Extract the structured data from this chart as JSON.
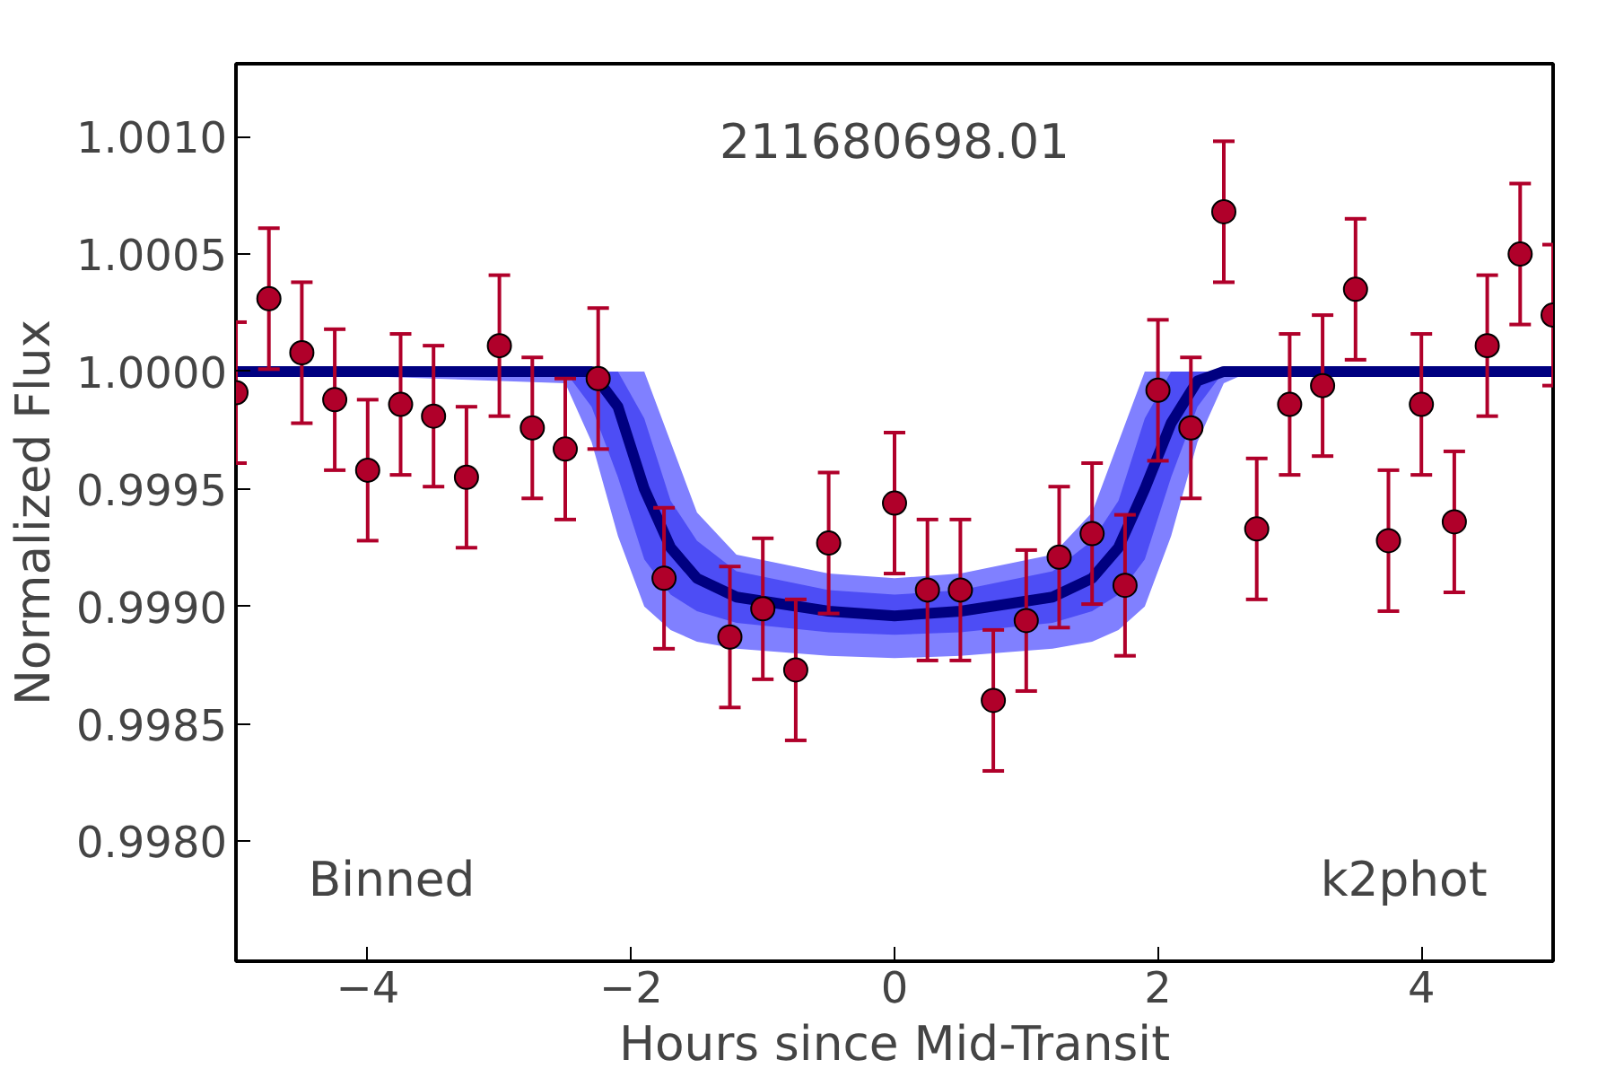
{
  "chart_data": {
    "type": "scatter",
    "xlabel": "Hours since Mid-Transit",
    "ylabel": "Normalized Flux",
    "annotations": [
      "211680698.01",
      "Binned",
      "k2phot"
    ],
    "xlim": [
      -5,
      5
    ],
    "ylim": [
      0.99749,
      1.00131
    ],
    "xticks": [
      -4,
      -2,
      0,
      2,
      4
    ],
    "yticks": [
      {
        "value": 0.998,
        "label": "0.9980"
      },
      {
        "value": 0.9985,
        "label": "0.9985"
      },
      {
        "value": 0.999,
        "label": "0.9990"
      },
      {
        "value": 0.9995,
        "label": "0.9995"
      },
      {
        "value": 1.0,
        "label": "1.0000"
      },
      {
        "value": 1.0005,
        "label": "1.0005"
      },
      {
        "value": 1.001,
        "label": "1.0010"
      }
    ],
    "grid": false,
    "series": [
      {
        "type": "line",
        "color": "#8080ff",
        "x": [
          -5,
          -2.5,
          -2.3,
          -2.1,
          -1.9,
          -1.7,
          -1.5,
          -1.2,
          -0.5,
          0,
          0.5,
          1.2,
          1.5,
          1.7,
          1.9,
          2.1,
          2.3,
          2.5,
          2.7,
          5
        ],
        "values": [
          null,
          null,
          null,
          null,
          null,
          null,
          null,
          null,
          null,
          null,
          null,
          null,
          null,
          null,
          null,
          null,
          null,
          null,
          null,
          null
        ],
        "upper": [
          1,
          1,
          1,
          1,
          1,
          0.9997,
          0.9994,
          0.99922,
          0.99914,
          0.99912,
          0.99914,
          0.99922,
          0.9994,
          0.9997,
          1,
          1,
          1,
          1,
          1,
          1
        ],
        "lower": [
          1,
          0.99995,
          0.9997,
          0.9993,
          0.999,
          0.9989,
          0.99885,
          0.99882,
          0.99879,
          0.99878,
          0.99879,
          0.99882,
          0.99885,
          0.9989,
          0.999,
          0.9993,
          0.9997,
          0.99995,
          1,
          1
        ]
      },
      {
        "type": "line",
        "color": "#4d4df5",
        "x": [
          -5,
          -2.5,
          -2.3,
          -2.1,
          -1.9,
          -1.7,
          -1.5,
          -1.2,
          -0.5,
          0,
          0.5,
          1.2,
          1.5,
          1.7,
          1.9,
          2.1,
          2.3,
          2.5,
          2.7,
          5
        ],
        "values": [
          null,
          null,
          null,
          null,
          null,
          null,
          null,
          null,
          null,
          null,
          null,
          null,
          null,
          null,
          null,
          null,
          null,
          null,
          null,
          null
        ],
        "upper": [
          1,
          1,
          1,
          1,
          0.9998,
          0.99945,
          0.99928,
          0.99915,
          0.99907,
          0.99905,
          0.99907,
          0.99915,
          0.99928,
          0.99945,
          0.9998,
          1,
          1,
          1,
          1,
          1
        ],
        "lower": [
          1,
          1,
          0.99985,
          0.99955,
          0.9992,
          0.99905,
          0.99898,
          0.99893,
          0.99889,
          0.99888,
          0.99889,
          0.99893,
          0.99898,
          0.99905,
          0.9992,
          0.99955,
          0.99985,
          1,
          1,
          1
        ]
      },
      {
        "type": "line",
        "color": "#000080",
        "x": [
          -5,
          -2.5,
          -2.3,
          -2.1,
          -1.9,
          -1.7,
          -1.5,
          -1.2,
          -0.5,
          0,
          0.5,
          1.2,
          1.5,
          1.7,
          1.9,
          2.1,
          2.3,
          2.5,
          2.7,
          5
        ],
        "values": [
          1,
          1,
          1,
          0.99985,
          0.9995,
          0.99925,
          0.99912,
          0.99904,
          0.99898,
          0.99896,
          0.99898,
          0.99904,
          0.99912,
          0.99925,
          0.9995,
          0.99978,
          0.99996,
          1,
          1,
          1
        ]
      },
      {
        "color": "#b0002a",
        "marker": "circle",
        "x": [
          -5,
          -4.75,
          -4.5,
          -4.25,
          -4,
          -3.75,
          -3.5,
          -3.25,
          -3,
          -2.75,
          -2.5,
          -2.25,
          -1.75,
          -1.25,
          -1,
          -0.75,
          -0.5,
          0,
          0.25,
          0.5,
          0.75,
          1,
          1.25,
          1.5,
          1.75,
          2,
          2.25,
          2.5,
          2.75,
          3,
          3.25,
          3.5,
          3.75,
          4,
          4.25,
          4.5,
          4.75,
          5
        ],
        "values": [
          0.99991,
          1.00031,
          1.00008,
          0.99988,
          0.99958,
          0.99986,
          0.99981,
          0.99955,
          1.00011,
          0.99976,
          0.99967,
          0.99997,
          0.99912,
          0.99887,
          0.99899,
          0.99873,
          0.99927,
          0.99944,
          0.99907,
          0.99907,
          0.9986,
          0.99894,
          0.99921,
          0.99931,
          0.99909,
          0.99992,
          0.99976,
          1.00068,
          0.99933,
          0.99986,
          0.99994,
          1.00035,
          0.99928,
          0.99986,
          0.99936,
          1.00011,
          1.0005,
          1.00024
        ],
        "errors": [
          0.0003,
          0.0003,
          0.0003,
          0.0003,
          0.0003,
          0.0003,
          0.0003,
          0.0003,
          0.0003,
          0.0003,
          0.0003,
          0.0003,
          0.0003,
          0.0003,
          0.0003,
          0.0003,
          0.0003,
          0.0003,
          0.0003,
          0.0003,
          0.0003,
          0.0003,
          0.0003,
          0.0003,
          0.0003,
          0.0003,
          0.0003,
          0.0003,
          0.0003,
          0.0003,
          0.0003,
          0.0003,
          0.0003,
          0.0003,
          0.0003,
          0.0003,
          0.0003,
          0.0003
        ]
      }
    ]
  }
}
